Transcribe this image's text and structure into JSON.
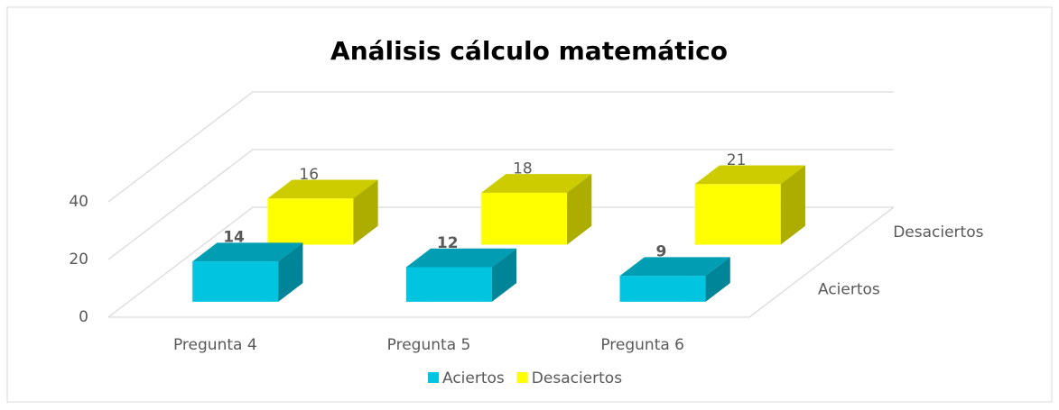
{
  "chart_data": {
    "type": "bar3d",
    "title": "Análisis cálculo matemático",
    "categories": [
      "Pregunta 4",
      "Pregunta 5",
      "Pregunta 6"
    ],
    "series": [
      {
        "name": "Aciertos",
        "color": "#00c4e0",
        "values": [
          14,
          12,
          9
        ]
      },
      {
        "name": "Desaciertos",
        "color": "#ffff00",
        "values": [
          16,
          18,
          21
        ]
      }
    ],
    "ylim": [
      0,
      40
    ],
    "yticks": [
      0,
      20,
      40
    ],
    "grid": true,
    "legend": "bottom"
  }
}
